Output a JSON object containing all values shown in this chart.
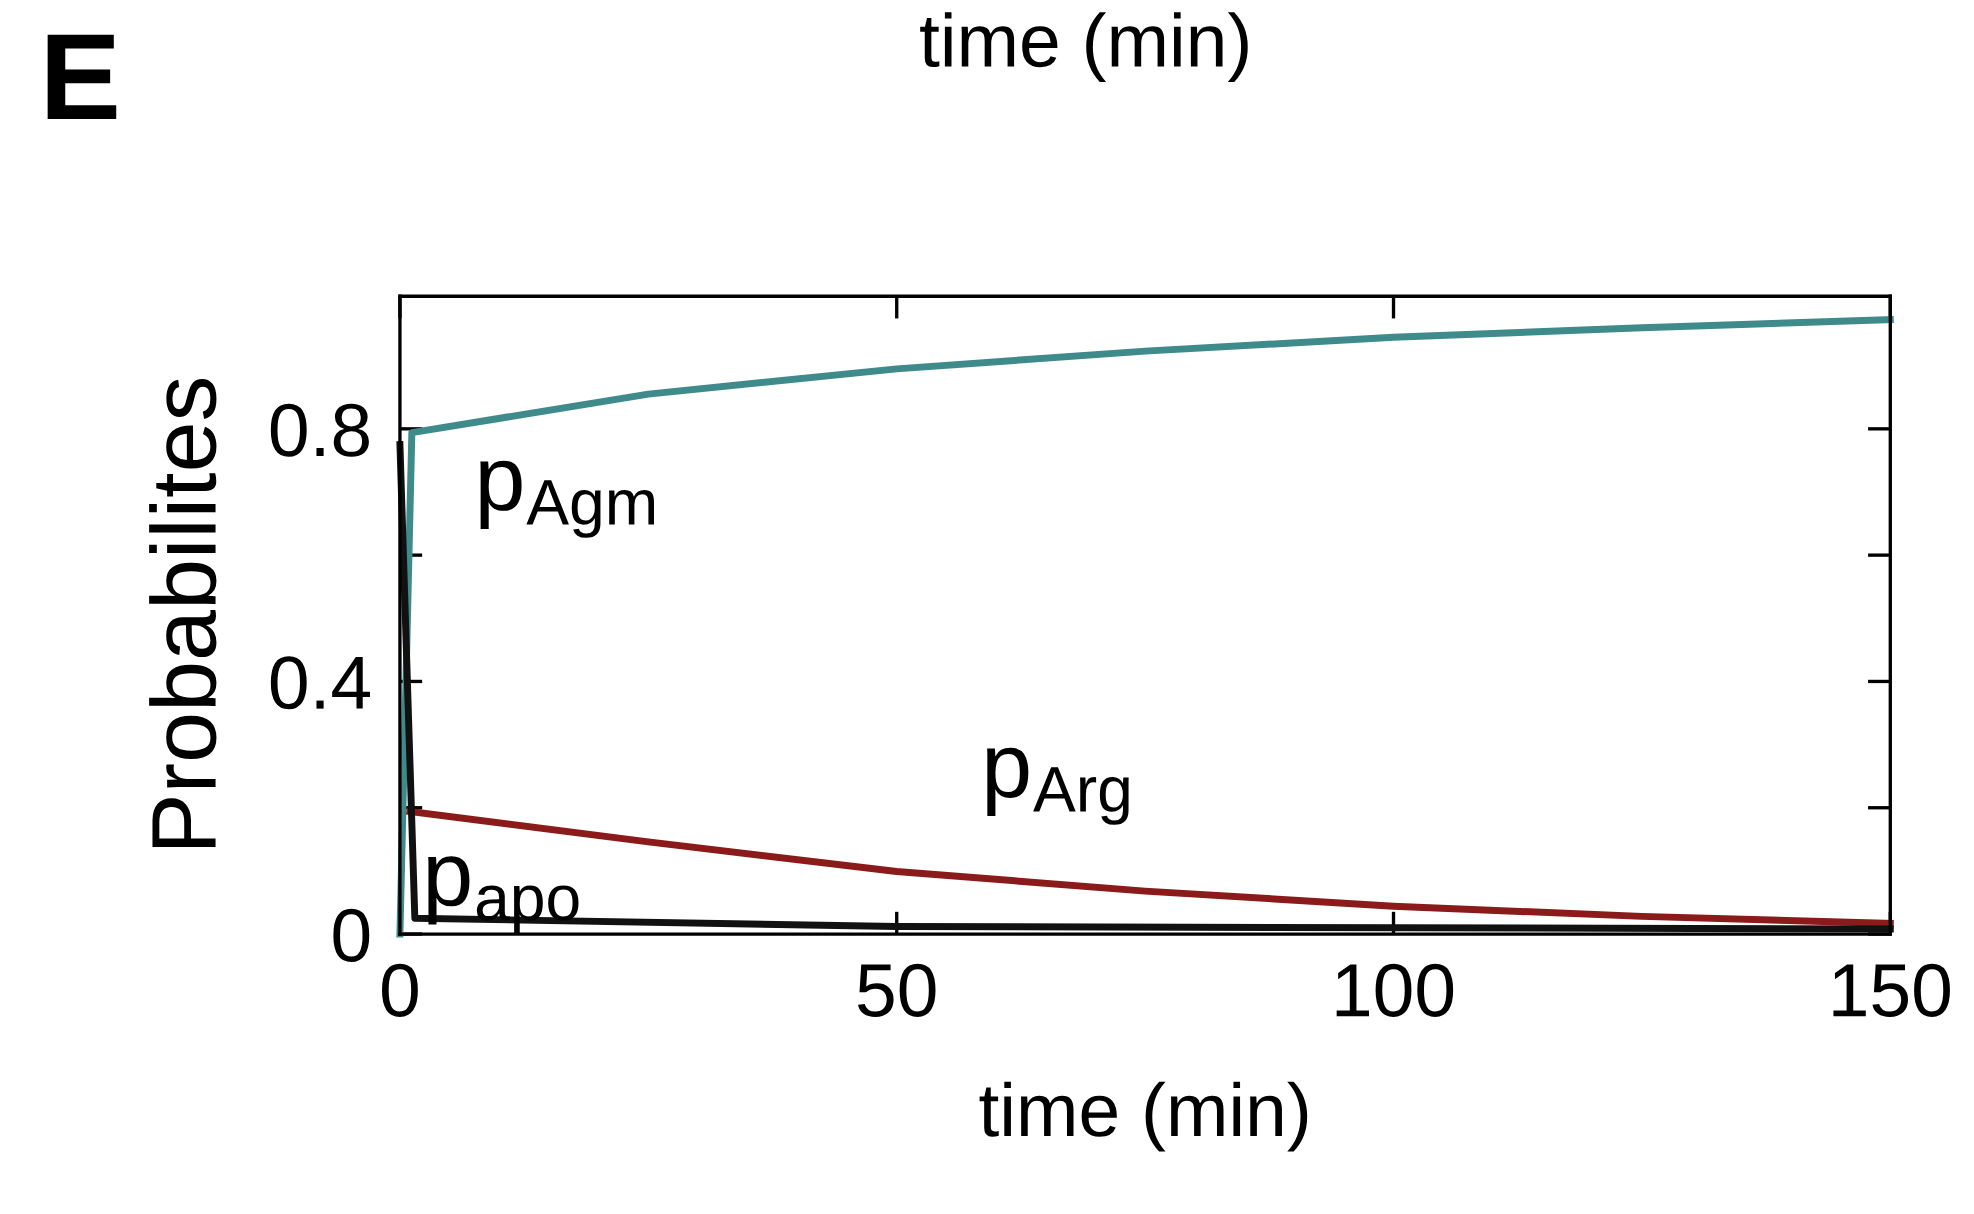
{
  "chart_data": {
    "type": "line",
    "xlabel": "time (min)",
    "ylabel": "Probabilites",
    "xlim": [
      0,
      150
    ],
    "xticks": [
      0,
      50,
      100,
      150
    ],
    "ylim": [
      0,
      1.01
    ],
    "yticks": [
      0,
      {
        "value": 0.2,
        "label": null
      },
      0.4,
      {
        "value": 0.6,
        "label": null
      },
      0.8
    ],
    "grid": false,
    "legend": false,
    "marker": "none",
    "line_style": "solid",
    "series": [
      {
        "name": "p$_{Agm}$",
        "color": "#3f8a8a",
        "x": [
          0,
          1.2,
          25,
          50,
          75,
          100,
          125,
          150
        ],
        "values": [
          0,
          0.794,
          0.855,
          0.895,
          0.923,
          0.945,
          0.96,
          0.973
        ]
      },
      {
        "name": "p$_{Arg}$",
        "color": "#8b1a1a",
        "x": [
          1,
          25,
          50,
          75,
          100,
          125,
          150
        ],
        "values": [
          0.194,
          0.146,
          0.099,
          0.068,
          0.044,
          0.028,
          0.017
        ]
      },
      {
        "name": "p$_{apo}$",
        "color": "#111111",
        "x": [
          0,
          1.5,
          50,
          150
        ],
        "values": [
          0.775,
          0.025,
          0.012,
          0.008
        ]
      }
    ],
    "annotations": [
      "E",
      "time (min)"
    ]
  }
}
